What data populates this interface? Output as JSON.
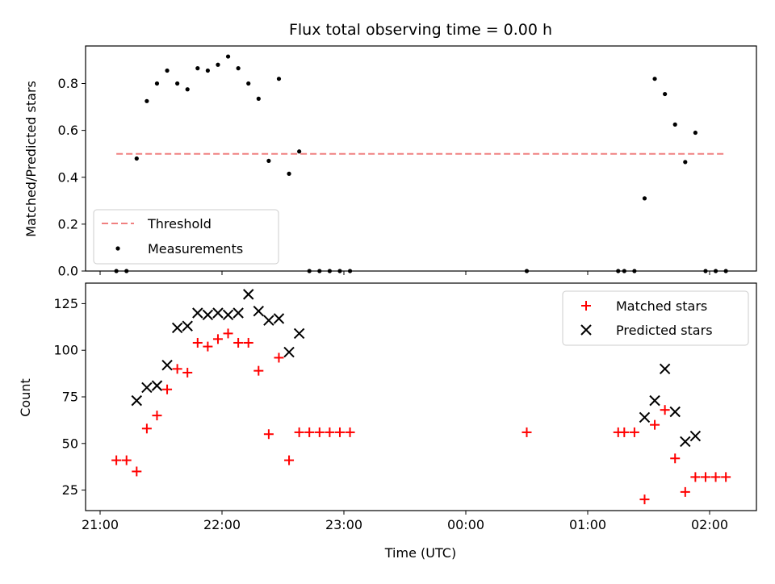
{
  "chart_data": [
    {
      "type": "scatter",
      "title": "Flux total observing time = 0.00 h",
      "ylabel": "Matched/Predicted stars",
      "xlabel": "",
      "ylim": [
        0,
        0.96
      ],
      "yticks": [
        "0.0",
        "0.2",
        "0.4",
        "0.6",
        "0.8"
      ],
      "grid": false,
      "legend_position": "lower-left",
      "threshold": {
        "name": "Threshold",
        "value": 0.5,
        "x_start": "21:08",
        "x_end": "02:08",
        "color": "#f08080",
        "style": "dashed"
      },
      "series": [
        {
          "name": "Measurements",
          "color": "#000000",
          "marker": "dot",
          "points": [
            [
              "21:08",
              0.0
            ],
            [
              "21:13",
              0.0
            ],
            [
              "21:18",
              0.48
            ],
            [
              "21:23",
              0.725
            ],
            [
              "21:28",
              0.8
            ],
            [
              "21:33",
              0.855
            ],
            [
              "21:38",
              0.8
            ],
            [
              "21:43",
              0.775
            ],
            [
              "21:48",
              0.865
            ],
            [
              "21:53",
              0.855
            ],
            [
              "21:58",
              0.88
            ],
            [
              "22:03",
              0.915
            ],
            [
              "22:08",
              0.865
            ],
            [
              "22:13",
              0.8
            ],
            [
              "22:18",
              0.735
            ],
            [
              "22:23",
              0.47
            ],
            [
              "22:28",
              0.82
            ],
            [
              "22:33",
              0.415
            ],
            [
              "22:38",
              0.51
            ],
            [
              "22:43",
              0.0
            ],
            [
              "22:48",
              0.0
            ],
            [
              "22:53",
              0.0
            ],
            [
              "22:58",
              0.0
            ],
            [
              "23:03",
              0.0
            ],
            [
              "00:30",
              0.0
            ],
            [
              "01:15",
              0.0
            ],
            [
              "01:18",
              0.0
            ],
            [
              "01:23",
              0.0
            ],
            [
              "01:28",
              0.31
            ],
            [
              "01:33",
              0.82
            ],
            [
              "01:38",
              0.755
            ],
            [
              "01:43",
              0.625
            ],
            [
              "01:48",
              0.465
            ],
            [
              "01:53",
              0.59
            ],
            [
              "01:58",
              0.0
            ],
            [
              "02:03",
              0.0
            ],
            [
              "02:08",
              0.0
            ]
          ]
        }
      ]
    },
    {
      "type": "scatter",
      "title": "",
      "ylabel": "Count",
      "xlabel": "Time (UTC)",
      "ylim": [
        14,
        136
      ],
      "yticks": [
        "25",
        "50",
        "75",
        "100",
        "125"
      ],
      "xticks": [
        "21:00",
        "22:00",
        "23:00",
        "00:00",
        "01:00",
        "02:00"
      ],
      "grid": false,
      "legend_position": "upper-right",
      "series": [
        {
          "name": "Matched stars",
          "color": "#ff0000",
          "marker": "plus",
          "points": [
            [
              "21:08",
              41
            ],
            [
              "21:13",
              41
            ],
            [
              "21:18",
              35
            ],
            [
              "21:23",
              58
            ],
            [
              "21:28",
              65
            ],
            [
              "21:33",
              79
            ],
            [
              "21:38",
              90
            ],
            [
              "21:43",
              88
            ],
            [
              "21:48",
              104
            ],
            [
              "21:53",
              102
            ],
            [
              "21:58",
              106
            ],
            [
              "22:03",
              109
            ],
            [
              "22:08",
              104
            ],
            [
              "22:13",
              104
            ],
            [
              "22:18",
              89
            ],
            [
              "22:23",
              55
            ],
            [
              "22:28",
              96
            ],
            [
              "22:33",
              41
            ],
            [
              "22:38",
              56
            ],
            [
              "22:43",
              56
            ],
            [
              "22:48",
              56
            ],
            [
              "22:53",
              56
            ],
            [
              "22:58",
              56
            ],
            [
              "23:03",
              56
            ],
            [
              "00:30",
              56
            ],
            [
              "01:15",
              56
            ],
            [
              "01:18",
              56
            ],
            [
              "01:23",
              56
            ],
            [
              "01:28",
              20
            ],
            [
              "01:33",
              60
            ],
            [
              "01:38",
              68
            ],
            [
              "01:43",
              42
            ],
            [
              "01:48",
              24
            ],
            [
              "01:53",
              32
            ],
            [
              "01:58",
              32
            ],
            [
              "02:03",
              32
            ],
            [
              "02:08",
              32
            ]
          ]
        },
        {
          "name": "Predicted stars",
          "color": "#000000",
          "marker": "x",
          "points": [
            [
              "21:18",
              73
            ],
            [
              "21:23",
              80
            ],
            [
              "21:28",
              81
            ],
            [
              "21:33",
              92
            ],
            [
              "21:38",
              112
            ],
            [
              "21:43",
              113
            ],
            [
              "21:48",
              120
            ],
            [
              "21:53",
              119
            ],
            [
              "21:58",
              120
            ],
            [
              "22:03",
              119
            ],
            [
              "22:08",
              120
            ],
            [
              "22:13",
              130
            ],
            [
              "22:18",
              121
            ],
            [
              "22:23",
              116
            ],
            [
              "22:28",
              117
            ],
            [
              "22:33",
              99
            ],
            [
              "22:38",
              109
            ],
            [
              "01:28",
              64
            ],
            [
              "01:33",
              73
            ],
            [
              "01:38",
              90
            ],
            [
              "01:43",
              67
            ],
            [
              "01:48",
              51
            ],
            [
              "01:53",
              54
            ]
          ]
        }
      ]
    }
  ]
}
